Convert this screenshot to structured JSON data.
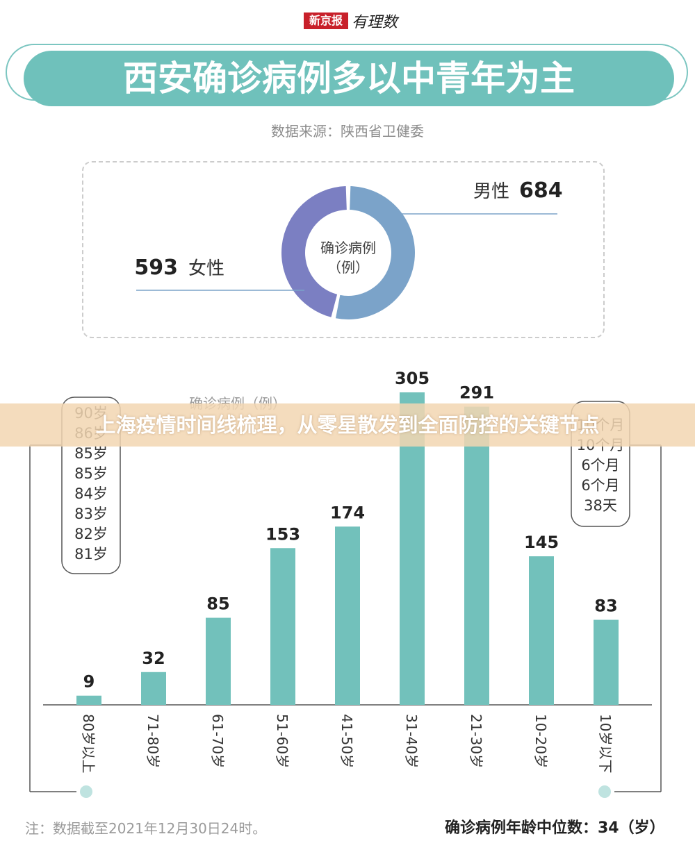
{
  "brand": {
    "name": "新京报",
    "sub": "有理数"
  },
  "title": "西安确诊病例多以中青年为主",
  "source": "数据来源：陕西省卫健委",
  "colors": {
    "teal": "#72c1bb",
    "male": "#7ba3c9",
    "female": "#7b7fc2",
    "axis": "#555555"
  },
  "gender": {
    "center_line1": "确诊病例",
    "center_line2": "（例）",
    "male": {
      "label": "男性",
      "value": 684
    },
    "female": {
      "label": "女性",
      "value": 593
    }
  },
  "banner": "上海疫情时间线梳理，从零星散发到全面防控的关键节点",
  "chart_data": {
    "type": "bar",
    "ylabel": "确诊病例（例）",
    "categories": [
      "80岁以上",
      "71-80岁",
      "61-70岁",
      "51-60岁",
      "41-50岁",
      "31-40岁",
      "21-30岁",
      "10-20岁",
      "10岁以下"
    ],
    "values": [
      9,
      32,
      85,
      153,
      174,
      305,
      291,
      145,
      83
    ],
    "ylim": [
      0,
      330
    ],
    "grid": false
  },
  "oldest": [
    "90岁",
    "86岁",
    "85岁",
    "85岁",
    "84岁",
    "83岁",
    "82岁",
    "81岁"
  ],
  "youngest": [
    "10个月",
    "10个月",
    "6个月",
    "6个月",
    "38天"
  ],
  "footnote": "注：数据截至2021年12月30日24时。",
  "median": "确诊病例年龄中位数：34（岁）"
}
